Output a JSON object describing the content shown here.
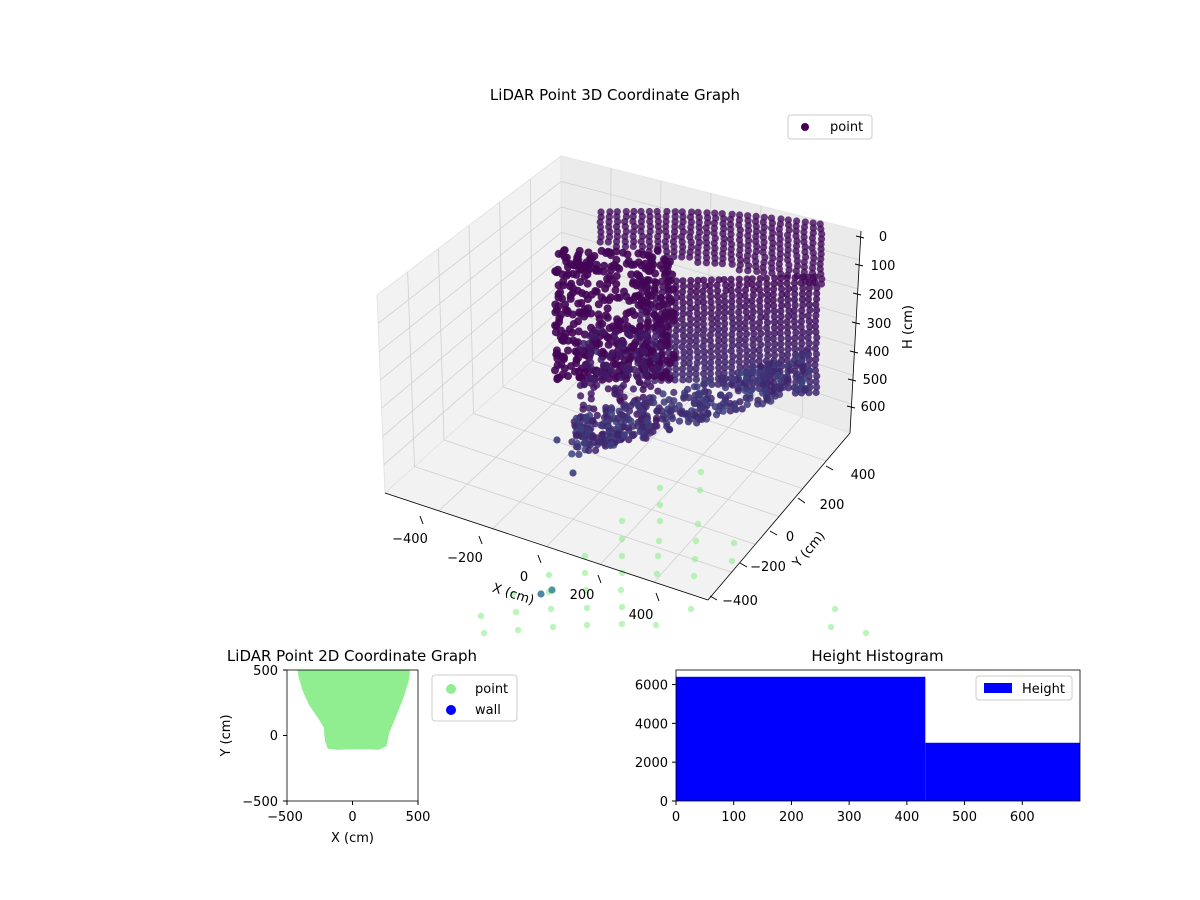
{
  "chart_data": [
    {
      "type": "scatter",
      "projection": "3d",
      "title": "LiDAR Point 3D Coordinate Graph",
      "xlabel": "X (cm)",
      "ylabel": "Y (cm)",
      "zlabel": "H (cm)",
      "x_ticks": [
        "−400",
        "−200",
        "0",
        "200",
        "400"
      ],
      "y_ticks": [
        "400",
        "200",
        "0",
        "−200",
        "−400"
      ],
      "z_ticks": [
        "0",
        "100",
        "200",
        "300",
        "400",
        "500",
        "600"
      ],
      "xlim": [
        -500,
        500
      ],
      "ylim": [
        -500,
        500
      ],
      "zlim": [
        0,
        690
      ],
      "z_inverted": true,
      "grid": true,
      "legend": {
        "entries": [
          "point"
        ],
        "placement": "top-right"
      },
      "colormap": "viridis",
      "stray_floor_points_color": "#90ee90",
      "description_series": [
        {
          "name": "point",
          "shape": "closed curved wall of vertical point columns plus a dense sloped floor band",
          "x_range": [
            -450,
            450
          ],
          "y_range": [
            -150,
            500
          ],
          "h_range": [
            0,
            690
          ]
        }
      ]
    },
    {
      "type": "scatter",
      "title": "LiDAR Point 2D Coordinate Graph",
      "xlabel": "X (cm)",
      "ylabel": "Y (cm)",
      "x_ticks": [
        "−500",
        "0",
        "500"
      ],
      "y_ticks": [
        "500",
        "0",
        "−500"
      ],
      "xlim": [
        -500,
        500
      ],
      "ylim": [
        -500,
        500
      ],
      "grid": false,
      "legend": {
        "entries": [
          "point",
          "wall"
        ],
        "placement": "outside-right"
      },
      "series": [
        {
          "name": "point",
          "color": "#90ee90",
          "region_outline": [
            [
              -420,
              500
            ],
            [
              -410,
              440
            ],
            [
              -380,
              340
            ],
            [
              -330,
              230
            ],
            [
              -260,
              130
            ],
            [
              -220,
              60
            ],
            [
              -210,
              -40
            ],
            [
              -190,
              -100
            ],
            [
              -120,
              -110
            ],
            [
              0,
              -105
            ],
            [
              120,
              -105
            ],
            [
              200,
              -110
            ],
            [
              260,
              -80
            ],
            [
              280,
              20
            ],
            [
              330,
              140
            ],
            [
              390,
              290
            ],
            [
              430,
              420
            ],
            [
              440,
              500
            ]
          ]
        },
        {
          "name": "wall",
          "color": "#0000ff",
          "values": []
        }
      ]
    },
    {
      "type": "bar",
      "subtype": "histogram",
      "title": "Height Histogram",
      "x_ticks": [
        "0",
        "100",
        "200",
        "300",
        "400",
        "500",
        "600"
      ],
      "y_ticks": [
        "0",
        "2000",
        "4000",
        "6000"
      ],
      "xlim": [
        0,
        700
      ],
      "ylim": [
        0,
        6750
      ],
      "legend": {
        "entries": [
          "Height"
        ],
        "placement": "top-right"
      },
      "series": [
        {
          "name": "Height",
          "color": "#0000ff",
          "bins": [
            {
              "from": 0,
              "to": 432,
              "count": 6400
            },
            {
              "from": 432,
              "to": 700,
              "count": 3000
            }
          ]
        }
      ]
    }
  ]
}
